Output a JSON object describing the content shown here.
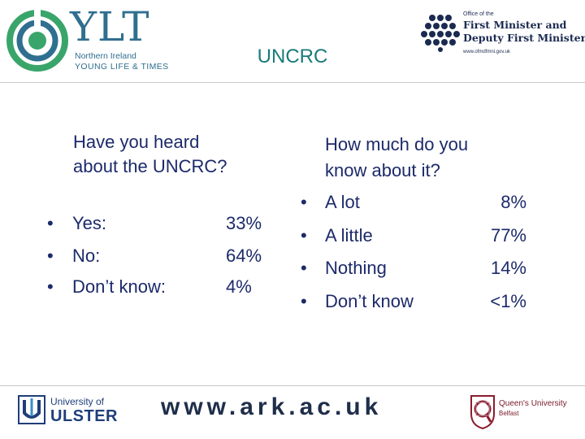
{
  "header": {
    "ylt": {
      "word": "YLT",
      "line1": "Northern Ireland",
      "line2": "YOUNG LIFE & TIMES"
    },
    "ofmdfm": {
      "small": "Office of the",
      "line1": "First Minister and",
      "line2": "Deputy First Minister",
      "url": "www.ofmdfmni.gov.uk"
    },
    "title": "UNCRC"
  },
  "left": {
    "question_line1": "Have you heard",
    "question_line2": "about the UNCRC?",
    "answers": [
      {
        "bullet": "•",
        "label": "Yes:",
        "value": "33%"
      },
      {
        "bullet": "•",
        "label": "No:",
        "value": "64%"
      },
      {
        "bullet": "•",
        "label": "Don’t know:",
        "value": "4%"
      }
    ]
  },
  "right": {
    "question_line1": "How much do you",
    "question_line2": "know about it?",
    "answers": [
      {
        "bullet": "•",
        "label": "A lot",
        "value": "8%"
      },
      {
        "bullet": "•",
        "label": "A little",
        "value": "77%"
      },
      {
        "bullet": "•",
        "label": "Nothing",
        "value": "14%"
      },
      {
        "bullet": "•",
        "label": "Don’t know",
        "value": "<1%"
      }
    ]
  },
  "footer": {
    "ulster": {
      "line1": "University of",
      "line2": "ULSTER"
    },
    "website": "www.ark.ac.uk",
    "qub": {
      "line1": "Queen's University",
      "line2": "Belfast"
    }
  },
  "colors": {
    "title": "#1b7a7a",
    "text": "#1c2a6a",
    "ylt": "#2f6f8f",
    "rule": "#c8c8c8"
  }
}
